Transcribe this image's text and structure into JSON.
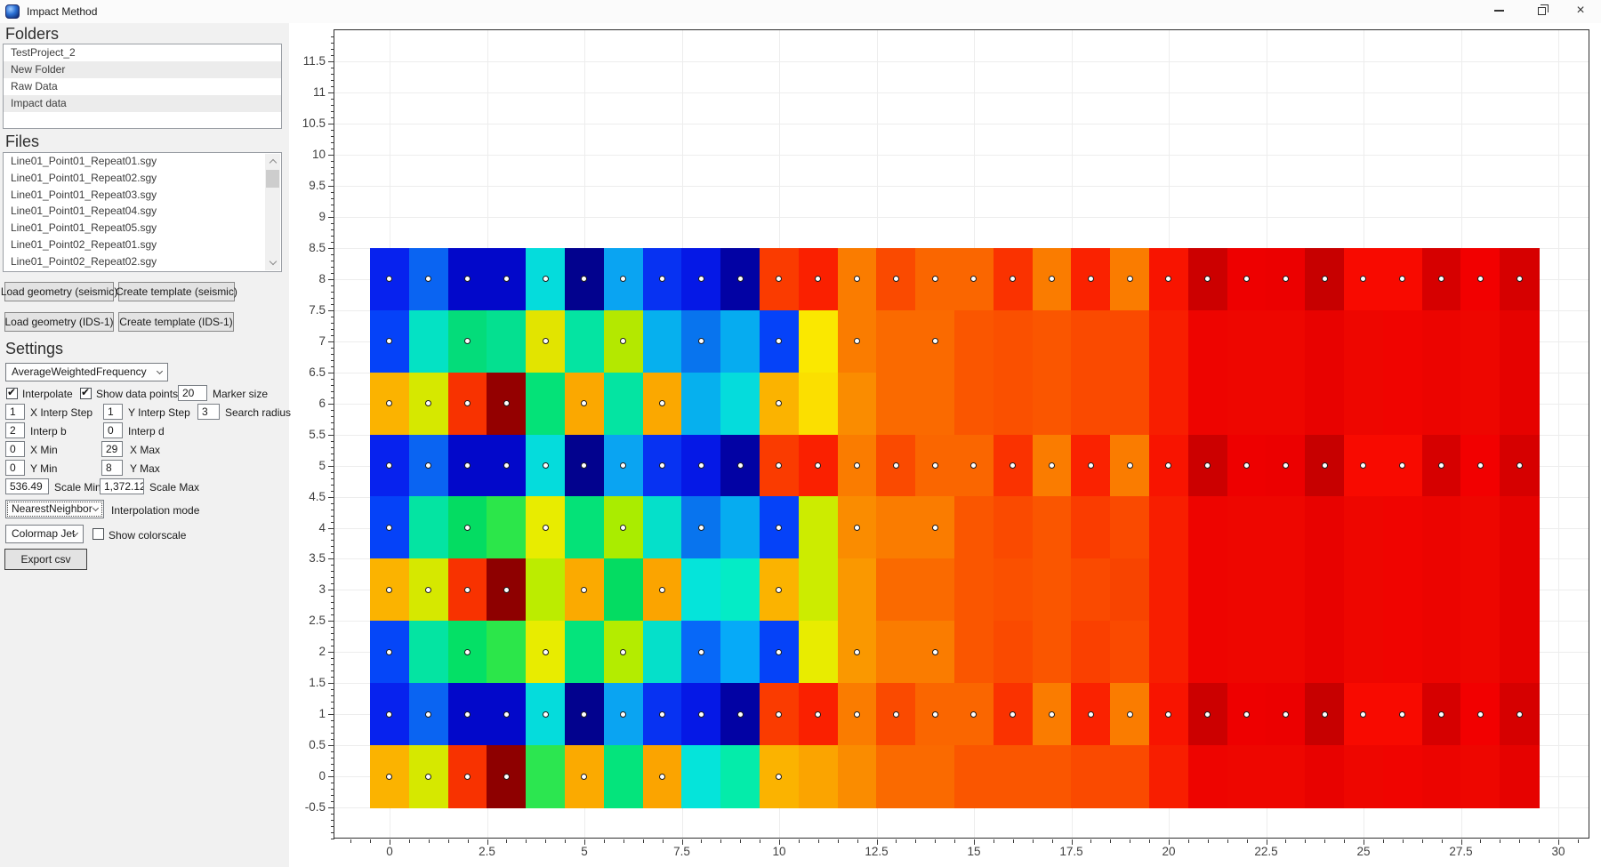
{
  "window": {
    "title": "Impact Method",
    "controls": {
      "minimize": "minimize",
      "restore": "restore",
      "close_glyph": "×"
    }
  },
  "sidebar": {
    "folders_heading": "Folders",
    "folders": [
      "TestProject_2",
      "New Folder",
      "Raw Data",
      "Impact data"
    ],
    "files_heading": "Files",
    "files": [
      "Line01_Point01_Repeat01.sgy",
      "Line01_Point01_Repeat02.sgy",
      "Line01_Point01_Repeat03.sgy",
      "Line01_Point01_Repeat04.sgy",
      "Line01_Point01_Repeat05.sgy",
      "Line01_Point02_Repeat01.sgy",
      "Line01_Point02_Repeat02.sgy"
    ],
    "buttons": {
      "load_seismic": "Load geometry (seismic)",
      "create_seismic": "Create template (seismic)",
      "load_ids1": "Load geometry (IDS-1)",
      "create_ids1": "Create template (IDS-1)",
      "export_csv": "Export csv"
    },
    "settings": {
      "heading": "Settings",
      "method_dropdown": "AverageWeightedFrequency",
      "interpolate": {
        "label": "Interpolate",
        "checked": true
      },
      "show_data_points": {
        "label": "Show data points",
        "checked": true
      },
      "marker_size": {
        "value": "20",
        "label": "Marker size"
      },
      "x_interp_step": {
        "value": "1",
        "label": "X Interp Step"
      },
      "y_interp_step": {
        "value": "1",
        "label": "Y Interp Step"
      },
      "search_radius": {
        "value": "3",
        "label": "Search radius"
      },
      "interp_b": {
        "value": "2",
        "label": "Interp b"
      },
      "interp_d": {
        "value": "0",
        "label": "Interp d"
      },
      "x_min": {
        "value": "0",
        "label": "X Min"
      },
      "x_max": {
        "value": "29",
        "label": "X Max"
      },
      "y_min": {
        "value": "0",
        "label": "Y Min"
      },
      "y_max": {
        "value": "8",
        "label": "Y Max"
      },
      "scale_min": {
        "value": "536.49",
        "label": "Scale Min"
      },
      "scale_max": {
        "value": "1,372.12",
        "label": "Scale Max"
      },
      "interpolation_mode": {
        "value": "NearestNeighbor",
        "label": "Interpolation mode"
      },
      "colormap": {
        "value": "Colormap Jet",
        "label": "Show colorscale",
        "show_colorscale_checked": false
      }
    }
  },
  "chart_data": {
    "type": "heatmap",
    "title": "",
    "xlabel": "",
    "ylabel": "",
    "grid": true,
    "x_tick_labels": [
      "0",
      "2.5",
      "5",
      "7.5",
      "10",
      "12.5",
      "15",
      "17.5",
      "20",
      "22.5",
      "25",
      "27.5",
      "30"
    ],
    "y_tick_labels": [
      "11.5",
      "11",
      "10.5",
      "10",
      "9.5",
      "9",
      "8.5",
      "8",
      "7.5",
      "7",
      "6.5",
      "6",
      "5.5",
      "5",
      "4.5",
      "4",
      "3.5",
      "3",
      "2.5",
      "2",
      "1.5",
      "1",
      "0.5",
      "0",
      "-0.5"
    ],
    "x_range": [
      -1.42,
      30.8
    ],
    "y_range": [
      -1.02,
      12.03
    ],
    "heat_x_extent": [
      -0.5,
      29.5
    ],
    "heat_y_extent": [
      -0.5,
      8.5
    ],
    "marker_style": {
      "fill": "#ffffff",
      "ring": "#1c1c1c"
    },
    "cells": [
      {
        "y": 8,
        "colors": [
          "#0722ee",
          "#0a64f2",
          "#0208ca",
          "#0208ca",
          "#05dcdc",
          "#02028e",
          "#0aa4f2",
          "#0732f2",
          "#0518e6",
          "#0202a4",
          "#fa3b00",
          "#fa2000",
          "#fa7c00",
          "#fa4a00",
          "#fa6600",
          "#fa6600",
          "#fa3200",
          "#fa7c00",
          "#fa2200",
          "#fa7c00",
          "#f81400",
          "#cc0000",
          "#ee0000",
          "#ec0000",
          "#c70000",
          "#f80a00",
          "#f80a00",
          "#d60000",
          "#f20000",
          "#d60000"
        ],
        "points": [
          0,
          1,
          2,
          3,
          4,
          5,
          6,
          7,
          8,
          9,
          10,
          11,
          12,
          13,
          14,
          15,
          16,
          17,
          18,
          19,
          20,
          21,
          22,
          23,
          24,
          25,
          26,
          27,
          28,
          29
        ]
      },
      {
        "y": 7,
        "colors": [
          "#0542f8",
          "#04e2c4",
          "#04dc7a",
          "#04e090",
          "#e2e400",
          "#04e4a2",
          "#b4e800",
          "#06b0ee",
          "#0874ee",
          "#06acf0",
          "#0542f8",
          "#fae800",
          "#fa7c00",
          "#fa6a00",
          "#fa6a00",
          "#fa5600",
          "#fa5000",
          "#fa5600",
          "#fa4a00",
          "#fa4a00",
          "#f81e00",
          "#ee0400",
          "#ee0600",
          "#ee0600",
          "#e80200",
          "#ee0600",
          "#f00400",
          "#ec0400",
          "#ee0600",
          "#e60200"
        ],
        "points": [
          0,
          2,
          4,
          6,
          8,
          10,
          12,
          14
        ]
      },
      {
        "y": 6,
        "colors": [
          "#fbb300",
          "#d6e800",
          "#f83200",
          "#940000",
          "#04e278",
          "#fba800",
          "#04e4a2",
          "#fba800",
          "#06b0ee",
          "#05dcdc",
          "#fbb300",
          "#fbdf00",
          "#fa8c00",
          "#fa6a00",
          "#fa6a00",
          "#fa5600",
          "#fa5000",
          "#fa5600",
          "#fa4a00",
          "#fa4a00",
          "#f81e00",
          "#ee0400",
          "#ee0600",
          "#ee0600",
          "#e80200",
          "#ee0600",
          "#f00400",
          "#ec0400",
          "#ee0600",
          "#e60200"
        ],
        "points": [
          0,
          1,
          2,
          3,
          5,
          7,
          10
        ]
      },
      {
        "y": 5,
        "colors": [
          "#0722ee",
          "#0a64f2",
          "#0208ca",
          "#0208ca",
          "#05dcdc",
          "#02028e",
          "#0aa4f2",
          "#0732f2",
          "#0518e6",
          "#0202a4",
          "#fa3b00",
          "#fa2000",
          "#fa7c00",
          "#fa4a00",
          "#fa6600",
          "#fa6600",
          "#fa3200",
          "#fa7c00",
          "#fa2200",
          "#fa7c00",
          "#f81400",
          "#cc0000",
          "#ee0000",
          "#ec0000",
          "#c70000",
          "#f80a00",
          "#f80a00",
          "#d60000",
          "#f20000",
          "#d60000"
        ],
        "points": [
          0,
          1,
          2,
          3,
          4,
          5,
          6,
          7,
          8,
          9,
          10,
          11,
          12,
          13,
          14,
          15,
          16,
          17,
          18,
          19,
          20,
          21,
          22,
          23,
          24,
          25,
          26,
          27,
          28,
          29
        ]
      },
      {
        "y": 4,
        "colors": [
          "#0542f8",
          "#04e4a2",
          "#04dc62",
          "#2ce64a",
          "#e8ec00",
          "#04e278",
          "#aaec00",
          "#05e0ca",
          "#0874ee",
          "#06acf0",
          "#0542f8",
          "#ccec00",
          "#fa8c00",
          "#fa7c00",
          "#fa7c00",
          "#fa5600",
          "#fa4a00",
          "#fa5600",
          "#fa3c00",
          "#fa4a00",
          "#f81e00",
          "#ee0400",
          "#ee0600",
          "#ee0600",
          "#e80200",
          "#ee0600",
          "#f00400",
          "#ec0400",
          "#ee0600",
          "#e60200"
        ],
        "points": [
          0,
          2,
          4,
          6,
          8,
          10,
          12,
          14
        ]
      },
      {
        "y": 3,
        "colors": [
          "#fbb300",
          "#d6e800",
          "#f83200",
          "#8e0000",
          "#bcec00",
          "#fbaa00",
          "#04dc62",
          "#fba400",
          "#05e4da",
          "#04ecc6",
          "#fbb300",
          "#ccec00",
          "#fa9800",
          "#fa6a00",
          "#fa6a00",
          "#fa5600",
          "#fa5000",
          "#fa5600",
          "#fa4a00",
          "#f84400",
          "#f81e00",
          "#ee0400",
          "#ee0600",
          "#ee0600",
          "#e80200",
          "#ee0600",
          "#f00400",
          "#ec0400",
          "#ee0600",
          "#e60200"
        ],
        "points": [
          0,
          1,
          2,
          3,
          5,
          7,
          10
        ]
      },
      {
        "y": 2,
        "colors": [
          "#0546f8",
          "#04e4a2",
          "#04e066",
          "#2ce64a",
          "#e8ec00",
          "#04e47c",
          "#b4ec00",
          "#05e0ca",
          "#0768f8",
          "#06aaf8",
          "#0542f8",
          "#e8ec00",
          "#fa9800",
          "#fa7c00",
          "#fa7c00",
          "#fa5600",
          "#fa4a00",
          "#fa5600",
          "#fa4000",
          "#fa4a00",
          "#f81e00",
          "#ee0400",
          "#ee0600",
          "#ee0600",
          "#e80200",
          "#ee0600",
          "#f00400",
          "#ec0400",
          "#ee0600",
          "#e60200"
        ],
        "points": [
          0,
          2,
          4,
          6,
          8,
          10,
          12,
          14
        ]
      },
      {
        "y": 1,
        "colors": [
          "#0722ee",
          "#0a64f2",
          "#0208ca",
          "#0208ca",
          "#05dcdc",
          "#02028e",
          "#0aa4f2",
          "#0732f2",
          "#0518e6",
          "#0202a4",
          "#fa3b00",
          "#fa2000",
          "#fa7c00",
          "#fa4a00",
          "#fa6600",
          "#fa6600",
          "#fa3200",
          "#fa7c00",
          "#fa2200",
          "#fa7c00",
          "#f81400",
          "#cc0000",
          "#ee0000",
          "#ec0000",
          "#c70000",
          "#f80a00",
          "#f80a00",
          "#d60000",
          "#f20000",
          "#d60000"
        ],
        "points": [
          0,
          1,
          2,
          3,
          4,
          5,
          6,
          7,
          8,
          9,
          10,
          11,
          12,
          13,
          14,
          15,
          16,
          17,
          18,
          19,
          20,
          21,
          22,
          23,
          24,
          25,
          26,
          27,
          28,
          29
        ]
      },
      {
        "y": 0,
        "colors": [
          "#fbb300",
          "#d6e800",
          "#f83200",
          "#8e0000",
          "#2ce650",
          "#fbaa00",
          "#04e47c",
          "#fba400",
          "#05e4da",
          "#04ecaa",
          "#fbb300",
          "#fba400",
          "#fa8c00",
          "#fa6a00",
          "#fa6a00",
          "#fa5600",
          "#fa5600",
          "#fa5600",
          "#fa4a00",
          "#fa4a00",
          "#f81e00",
          "#ee0400",
          "#ee0600",
          "#ee0600",
          "#e80200",
          "#ee0600",
          "#f00400",
          "#ec0400",
          "#ee0600",
          "#e60200"
        ],
        "points": [
          0,
          1,
          2,
          3,
          5,
          7,
          10
        ]
      }
    ]
  }
}
